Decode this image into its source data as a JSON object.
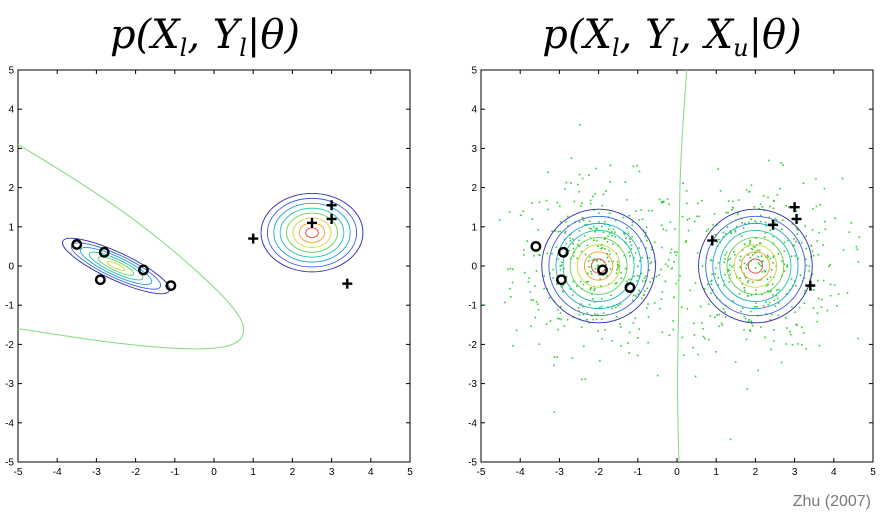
{
  "credit": "Zhu (2007)",
  "chart_data": [
    {
      "type": "scatter",
      "title": "p(X_l, Y_l | θ)",
      "title_parts": {
        "p": "p(",
        "X": "X",
        "xs": "l",
        "Y": "Y",
        "ys": "l",
        "rest": "|θ)"
      },
      "xlim": [
        -5,
        5
      ],
      "ylim": [
        -5,
        5
      ],
      "xticks": [
        "-5",
        "-4",
        "-3",
        "-2",
        "-1",
        "0",
        "1",
        "2",
        "3",
        "4",
        "5"
      ],
      "yticks": [
        "-5",
        "-4",
        "-3",
        "-2",
        "-1",
        "0",
        "1",
        "2",
        "3",
        "4",
        "5"
      ],
      "grid": false,
      "series": [
        {
          "marker": "circle",
          "points": [
            [
              -3.5,
              0.55
            ],
            [
              -2.8,
              0.35
            ],
            [
              -2.9,
              -0.35
            ],
            [
              -1.8,
              -0.1
            ],
            [
              -1.1,
              -0.5
            ]
          ]
        },
        {
          "marker": "plus",
          "points": [
            [
              1.0,
              0.7
            ],
            [
              2.5,
              1.1
            ],
            [
              3.0,
              1.55
            ],
            [
              3.0,
              1.2
            ],
            [
              3.4,
              -0.45
            ]
          ]
        }
      ],
      "contours": [
        {
          "cx": -2.5,
          "cy": 0.0,
          "rx": 1.5,
          "ry": 0.35,
          "angle_deg": -25,
          "levels": 6
        },
        {
          "cx": 2.5,
          "cy": 0.85,
          "rx": 1.3,
          "ry": 1.0,
          "angle_deg": 0,
          "levels": 8
        }
      ],
      "boundary": {
        "color": "#88dd88",
        "points": [
          [
            -5,
            3.1
          ],
          [
            -3,
            1.9
          ],
          [
            -1,
            0.4
          ],
          [
            0.7,
            -1.2
          ],
          [
            0.8,
            -1.9
          ],
          [
            0,
            -2.15
          ],
          [
            -2,
            -2.05
          ],
          [
            -5,
            -1.6
          ]
        ]
      },
      "colors": {
        "levels": [
          "#2a2ab0",
          "#3a5fd8",
          "#1aa0e0",
          "#20c0b0",
          "#60d050",
          "#c8d838",
          "#f0a020",
          "#e04040"
        ],
        "marker": "#000000",
        "axis": "#000000"
      }
    },
    {
      "type": "scatter",
      "title": "p(X_l, Y_l, X_u | θ)",
      "title_parts": {
        "p": "p(",
        "X": "X",
        "xs": "l",
        "Y": "Y",
        "ys": "l",
        "X2": "X",
        "x2s": "u",
        "rest": "|θ)"
      },
      "xlim": [
        -5,
        5
      ],
      "ylim": [
        -5,
        5
      ],
      "xticks": [
        "-5",
        "-4",
        "-3",
        "-2",
        "-1",
        "0",
        "1",
        "2",
        "3",
        "4",
        "5"
      ],
      "yticks": [
        "-5",
        "-4",
        "-3",
        "-2",
        "-1",
        "0",
        "1",
        "2",
        "3",
        "4",
        "5"
      ],
      "grid": false,
      "series": [
        {
          "marker": "circle",
          "points": [
            [
              -3.6,
              0.5
            ],
            [
              -2.9,
              0.35
            ],
            [
              -2.95,
              -0.35
            ],
            [
              -1.9,
              -0.1
            ],
            [
              -1.2,
              -0.55
            ]
          ]
        },
        {
          "marker": "plus",
          "points": [
            [
              0.9,
              0.65
            ],
            [
              2.45,
              1.05
            ],
            [
              3.0,
              1.5
            ],
            [
              3.05,
              1.2
            ],
            [
              3.4,
              -0.5
            ]
          ]
        },
        {
          "marker": "dot",
          "name": "",
          "unlabeled_clusters": [
            {
              "cx": -2.0,
              "cy": 0.0,
              "spread": 1.1,
              "count": 420
            },
            {
              "cx": 2.0,
              "cy": 0.0,
              "spread": 1.1,
              "count": 420
            }
          ]
        }
      ],
      "contours": [
        {
          "cx": -2.0,
          "cy": 0.0,
          "rx": 1.45,
          "ry": 1.45,
          "angle_deg": 0,
          "levels": 8
        },
        {
          "cx": 2.0,
          "cy": 0.0,
          "rx": 1.45,
          "ry": 1.45,
          "angle_deg": 0,
          "levels": 8
        }
      ],
      "boundary": {
        "color": "#88dd88",
        "points": [
          [
            0.25,
            5
          ],
          [
            0.1,
            3
          ],
          [
            0.05,
            1
          ],
          [
            0.05,
            -1
          ],
          [
            0.0,
            -3
          ],
          [
            0.05,
            -5
          ]
        ]
      },
      "colors": {
        "levels": [
          "#2a2ab0",
          "#3a5fd8",
          "#1aa0e0",
          "#20c0b0",
          "#60d050",
          "#c8d838",
          "#f0a020",
          "#e04040"
        ],
        "marker": "#000000",
        "axis": "#000000",
        "dots": "#33cc33"
      }
    }
  ]
}
